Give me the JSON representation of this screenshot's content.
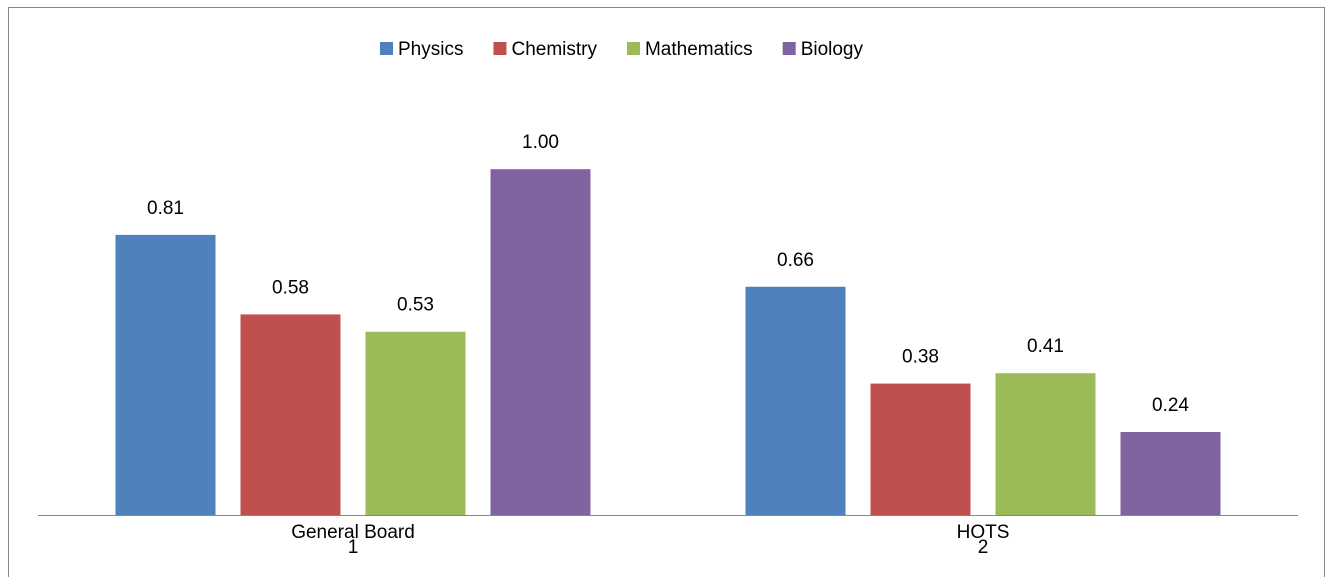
{
  "chart_data": {
    "type": "bar",
    "categories": [
      "General Board",
      "HOTS"
    ],
    "category_indices": [
      "1",
      "2"
    ],
    "series": [
      {
        "name": "Physics",
        "color": "#4f81bd",
        "values": [
          0.81,
          0.66
        ],
        "value_labels": [
          "0.81",
          "0.66"
        ]
      },
      {
        "name": "Chemistry",
        "color": "#c0504d",
        "values": [
          0.58,
          0.38
        ],
        "value_labels": [
          "0.58",
          "0.38"
        ]
      },
      {
        "name": "Mathematics",
        "color": "#9bbb59",
        "values": [
          0.53,
          0.41
        ],
        "value_labels": [
          "0.53",
          "0.41"
        ]
      },
      {
        "name": "Biology",
        "color": "#8064a2",
        "values": [
          1.0,
          0.24
        ],
        "value_labels": [
          "1.00",
          "0.24"
        ]
      }
    ],
    "ylim": [
      0,
      1.2
    ],
    "legend": "top"
  }
}
